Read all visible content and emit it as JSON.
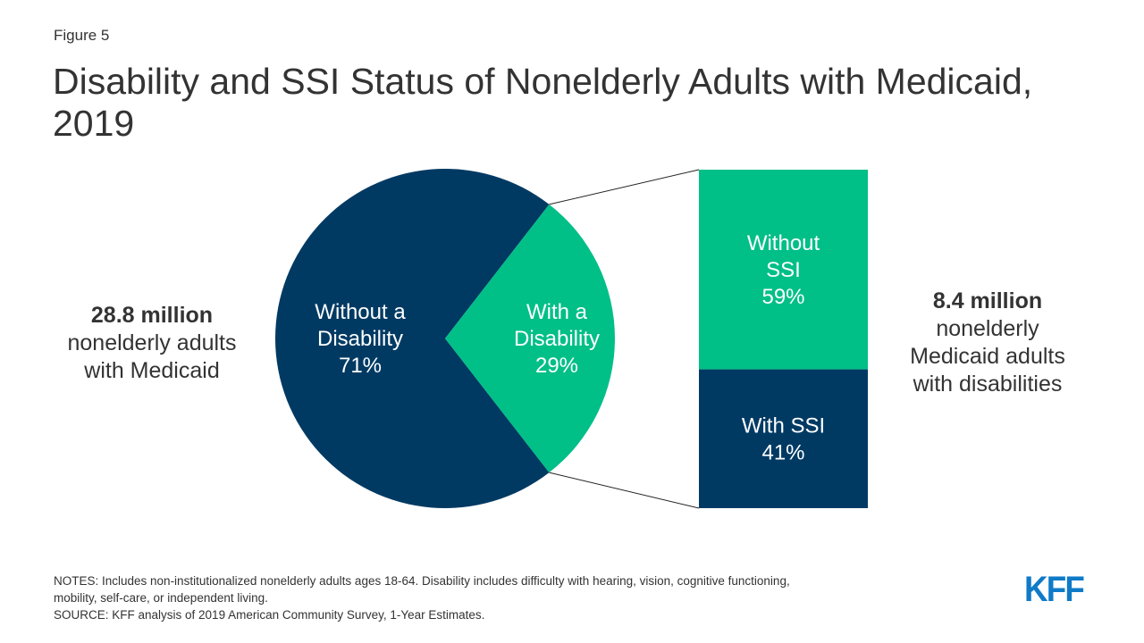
{
  "figure_label": "Figure 5",
  "title": "Disability and SSI Status of Nonelderly Adults with Medicaid, 2019",
  "left_note": {
    "strong": "28.8 million",
    "lines": [
      "nonelderly adults",
      "with Medicaid"
    ]
  },
  "right_note": {
    "strong": "8.4 million",
    "lines": [
      "nonelderly",
      "Medicaid adults",
      "with disabilities"
    ]
  },
  "colors": {
    "navy": "#003a63",
    "green": "#00bf87",
    "connector": "#222222"
  },
  "chart_data": [
    {
      "type": "pie",
      "slices": [
        {
          "label_lines": [
            "Without a",
            "Disability",
            "71%"
          ],
          "value": 71,
          "color": "#003a63"
        },
        {
          "label_lines": [
            "With a",
            "Disability",
            "29%"
          ],
          "value": 29,
          "color": "#00bf87"
        }
      ]
    },
    {
      "type": "bar",
      "stacked": true,
      "segments": [
        {
          "label_lines": [
            "Without",
            "SSI",
            "59%"
          ],
          "value": 59,
          "color": "#00bf87"
        },
        {
          "label_lines": [
            "With SSI",
            "41%"
          ],
          "value": 41,
          "color": "#003a63"
        }
      ]
    }
  ],
  "notes": {
    "line1": "NOTES: Includes non-institutionalized nonelderly adults ages 18-64. Disability includes difficulty with hearing, vision, cognitive functioning,",
    "line2": "mobility, self-care, or independent living.",
    "source": "SOURCE: KFF analysis of 2019 American Community Survey, 1-Year Estimates."
  },
  "logo_text": "KFF"
}
